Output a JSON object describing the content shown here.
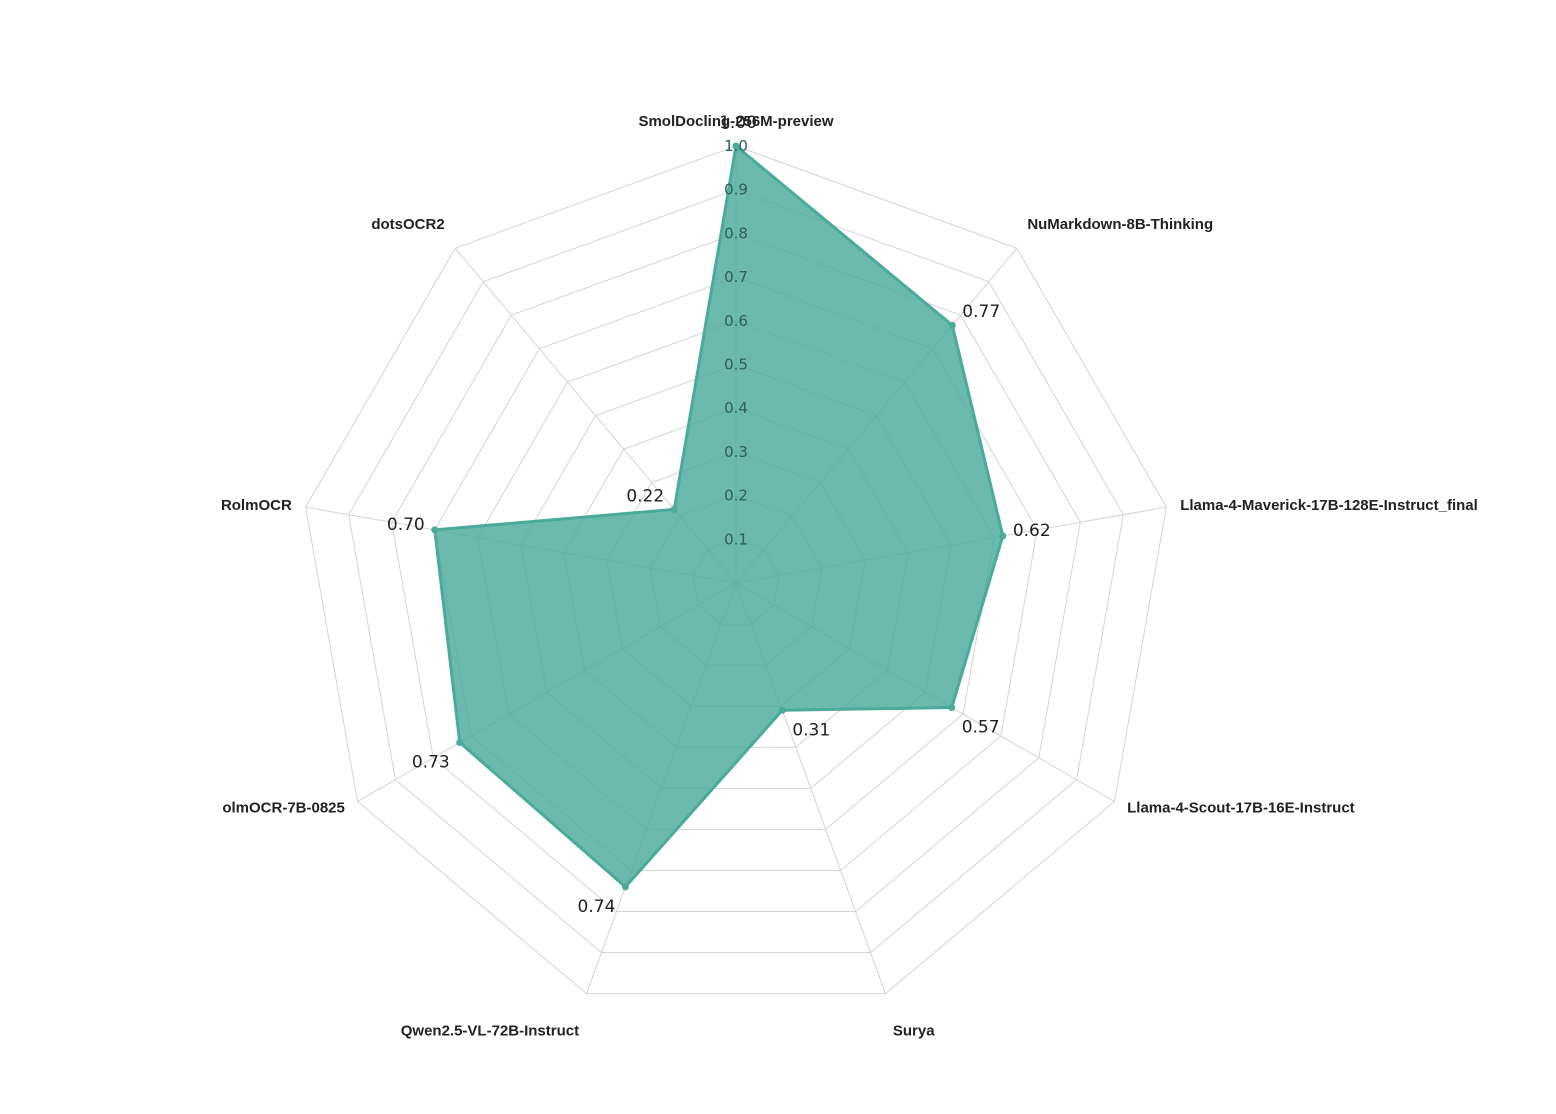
{
  "chart_data": {
    "type": "radar",
    "title": "",
    "categories": [
      "SmolDocling-256M-preview",
      "NuMarkdown-8B-Thinking",
      "Llama-4-Maverick-17B-128E-Instruct_final",
      "Llama-4-Scout-17B-16E-Instruct",
      "Surya",
      "Qwen2.5-VL-72B-Instruct",
      "olmOCR-7B-0825",
      "RolmOCR",
      "dotsOCR2"
    ],
    "series": [
      {
        "values": [
          1.0,
          0.77,
          0.62,
          0.57,
          0.31,
          0.74,
          0.73,
          0.7,
          0.22
        ],
        "value_labels": [
          "1.00",
          "0.77",
          "0.62",
          "0.57",
          "0.31",
          "0.74",
          "0.73",
          "0.70",
          "0.22"
        ],
        "color": "#4aab9b"
      }
    ],
    "radial_ticks": [
      "0.1",
      "0.2",
      "0.3",
      "0.4",
      "0.5",
      "0.6",
      "0.7",
      "0.8",
      "0.9",
      "1.0"
    ],
    "rlim": [
      0,
      1.0
    ],
    "grid": true,
    "grid_levels": 10,
    "colors": {
      "fill": "#4aab9b",
      "stroke": "#4aab9b",
      "grid": "#d4d4d4",
      "tick_text": "#2b5f57"
    }
  }
}
